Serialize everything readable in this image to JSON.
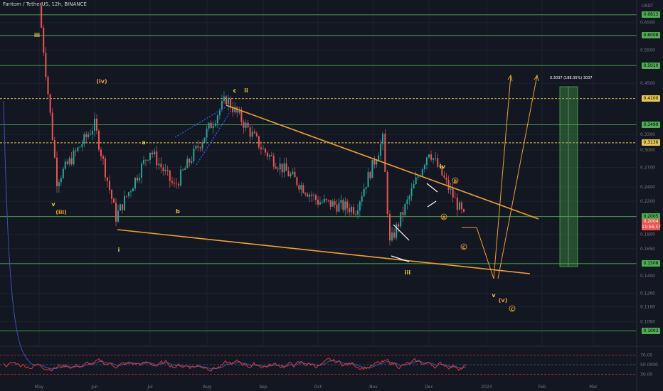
{
  "header": {
    "title": "Fantom / TetherUS, 12h, BINANCE"
  },
  "axis": {
    "currency": "USDT",
    "y_ticks": [
      "0.6500",
      "0.5500",
      "0.4500",
      "0.3300",
      "0.3000",
      "0.2700",
      "0.2400",
      "0.2200",
      "0.1800",
      "0.1650",
      "0.1400",
      "0.1260",
      "0.1160",
      "0.1060"
    ],
    "x_ticks": [
      "May",
      "Jun",
      "Jul",
      "Aug",
      "Sep",
      "Oct",
      "Nov",
      "Dec",
      "2023",
      "Feb",
      "Mar"
    ],
    "rsi_ticks": [
      "70.00",
      "50.0000",
      "30.00"
    ]
  },
  "levels": [
    {
      "label": "0.6813",
      "style": "solid"
    },
    {
      "label": "0.6008",
      "style": "solid"
    },
    {
      "label": "0.5010",
      "style": "solid"
    },
    {
      "label": "0.4100",
      "style": "dashed"
    },
    {
      "label": "0.3499",
      "style": "solid"
    },
    {
      "label": "0.3136",
      "style": "dashed"
    },
    {
      "label": "0.2005",
      "style": "solid"
    },
    {
      "label": "0.1508",
      "style": "solid"
    },
    {
      "label": "0.1003",
      "style": "solid"
    }
  ],
  "current_price": {
    "label": "0.2004",
    "timer": "11:56:57"
  },
  "projection_label": "0.3037 (188.35%) 3037",
  "wave_labels": [
    {
      "text": "iii",
      "color": "#e8c84a"
    },
    {
      "text": "(iv)",
      "color": "#f0a030"
    },
    {
      "text": "v",
      "color": "#e8c84a"
    },
    {
      "text": "(iii)",
      "color": "#f0a030"
    },
    {
      "text": "i",
      "color": "#e8c84a"
    },
    {
      "text": "a",
      "color": "#e8c84a"
    },
    {
      "text": "b",
      "color": "#e8c84a"
    },
    {
      "text": "c",
      "color": "#e8c84a"
    },
    {
      "text": "ii",
      "color": "#e8c84a"
    },
    {
      "text": "iv",
      "color": "#e8c84a"
    },
    {
      "text": "iii",
      "color": "#e8c84a"
    },
    {
      "text": "v",
      "color": "#e8c84a"
    },
    {
      "text": "(v)",
      "color": "#f0a030"
    },
    {
      "text": "C",
      "color": "#f0a030"
    },
    {
      "text": "B",
      "color": "#f0a030"
    },
    {
      "text": "A",
      "color": "#f0a030"
    },
    {
      "text": "C",
      "color": "#f0a030"
    }
  ],
  "colors": {
    "up": "#26a69a",
    "down": "#ef5350",
    "level": "#4caf50",
    "trend": "#f0a030",
    "rsi": "#e53935",
    "rsi_ma": "#3f51b5"
  },
  "chart_data": {
    "type": "candlestick",
    "title": "Fantom / TetherUS, 12h, BINANCE",
    "xlabel": "",
    "ylabel": "USDT",
    "y_scale": "log",
    "ylim": [
      0.095,
      0.72
    ],
    "x_categories": [
      "May",
      "Jun",
      "Jul",
      "Aug",
      "Sep",
      "Oct",
      "Nov",
      "Dec",
      "2023",
      "Feb",
      "Mar"
    ],
    "close_path": [
      {
        "x": "May",
        "y": 0.72
      },
      {
        "x": "May",
        "y": 0.25
      },
      {
        "x": "Jun",
        "y": 0.35
      },
      {
        "x": "Jun",
        "y": 0.2
      },
      {
        "x": "Jul",
        "y": 0.3
      },
      {
        "x": "Jul",
        "y": 0.24
      },
      {
        "x": "Aug",
        "y": 0.41
      },
      {
        "x": "Sep",
        "y": 0.3
      },
      {
        "x": "Oct",
        "y": 0.22
      },
      {
        "x": "Nov",
        "y": 0.21
      },
      {
        "x": "Nov",
        "y": 0.32
      },
      {
        "x": "Nov",
        "y": 0.17
      },
      {
        "x": "Dec",
        "y": 0.3
      },
      {
        "x": "Dec",
        "y": 0.2
      }
    ],
    "horizontal_levels": [
      0.6813,
      0.6008,
      0.501,
      0.41,
      0.3499,
      0.3136,
      0.2005,
      0.1508,
      0.1003
    ],
    "last_price": 0.2004,
    "indicator": {
      "name": "RSI",
      "levels": [
        70,
        50,
        30
      ]
    }
  }
}
